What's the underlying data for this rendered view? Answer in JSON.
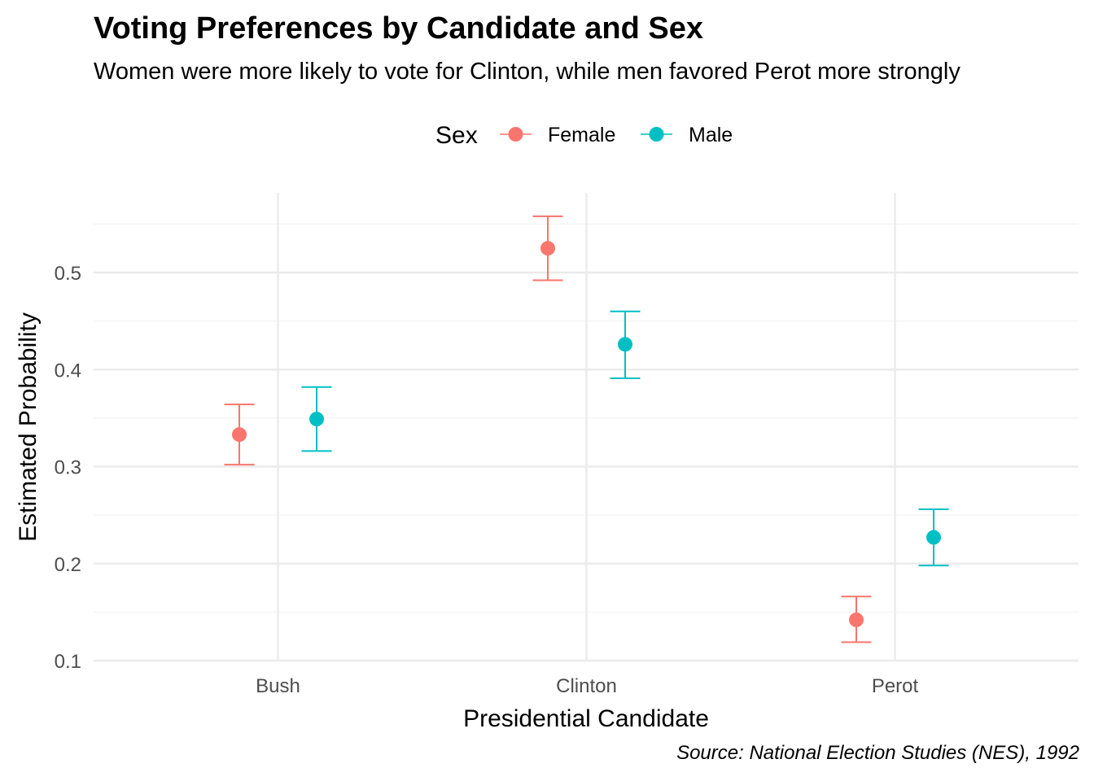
{
  "title": "Voting Preferences by Candidate and Sex",
  "subtitle": "Women were more likely to vote for Clinton, while men favored Perot more strongly",
  "caption": "Source: National Election Studies (NES), 1992",
  "colors": {
    "Female": "#F8766D",
    "Male": "#00BFC4",
    "grid_major": "#EBEBEB",
    "grid_minor": "#F3F3F3",
    "axis_text": "#4D4D4D"
  },
  "chart_data": {
    "type": "scatter",
    "subtype": "point-with-errorbars",
    "xlabel": "Presidential Candidate",
    "ylabel": "Estimated Probability",
    "categories": [
      "Bush",
      "Clinton",
      "Perot"
    ],
    "ylim": [
      0.1,
      0.56
    ],
    "yticks": [
      0.1,
      0.2,
      0.3,
      0.4,
      0.5
    ],
    "ytick_labels": [
      "0.1",
      "0.2",
      "0.3",
      "0.4",
      "0.5"
    ],
    "grid": true,
    "legend": {
      "title": "Sex",
      "position": "top",
      "entries": [
        "Female",
        "Male"
      ]
    },
    "series": [
      {
        "name": "Female",
        "values": [
          0.333,
          0.525,
          0.142
        ],
        "lower": [
          0.302,
          0.492,
          0.119
        ],
        "upper": [
          0.364,
          0.558,
          0.166
        ]
      },
      {
        "name": "Male",
        "values": [
          0.349,
          0.426,
          0.227
        ],
        "lower": [
          0.316,
          0.391,
          0.198
        ],
        "upper": [
          0.382,
          0.46,
          0.256
        ]
      }
    ]
  }
}
